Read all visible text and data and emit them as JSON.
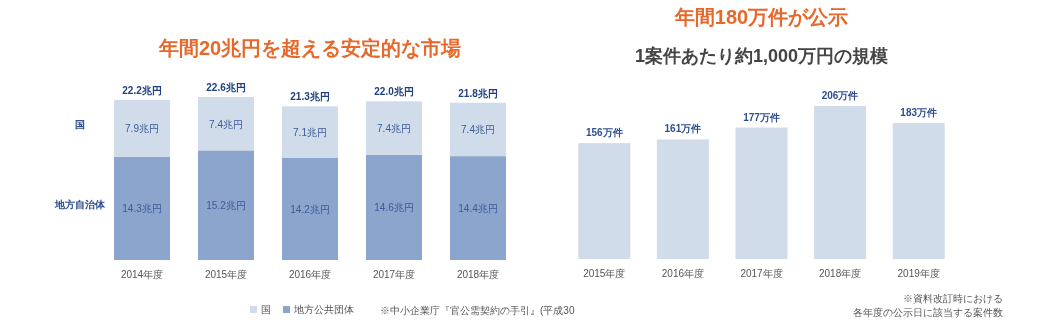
{
  "chart_data": [
    {
      "type": "bar",
      "title": "年間20兆円を超える安定的な市場",
      "stacked": true,
      "categories": [
        "2014年度",
        "2015年度",
        "2016年度",
        "2017年度",
        "2018年度"
      ],
      "series": [
        {
          "name": "地方公共団体",
          "color": "#8ba5cc",
          "values": [
            14.3,
            15.2,
            14.2,
            14.6,
            14.4
          ],
          "value_labels": [
            "14.3兆円",
            "15.2兆円",
            "14.2兆円",
            "14.6兆円",
            "14.4兆円"
          ]
        },
        {
          "name": "国",
          "color": "#d0dcea",
          "values": [
            7.9,
            7.4,
            7.1,
            7.4,
            7.4
          ],
          "value_labels": [
            "7.9兆円",
            "7.4兆円",
            "7.1兆円",
            "7.4兆円",
            "7.4兆円"
          ]
        }
      ],
      "totals": [
        "22.2兆円",
        "22.6兆円",
        "21.3兆円",
        "22.0兆円",
        "21.8兆円"
      ],
      "legend": "bottom",
      "annotations": [
        "国",
        "地方自治体",
        "※中小企業庁『官公需契約の手引』(平成30"
      ]
    },
    {
      "type": "bar",
      "title": "年間180万件が公示",
      "subtitle": "1案件あたり約1,000万円の規模",
      "categories": [
        "2015年度",
        "2016年度",
        "2017年度",
        "2018年度",
        "2019年度"
      ],
      "values": [
        156,
        161,
        177,
        206,
        183
      ],
      "color": "#d0dcea",
      "value_labels": [
        "156万件",
        "161万件",
        "177万件",
        "206万件",
        "183万件"
      ],
      "annotations": [
        "※資料改訂時における",
        "各年度の公示日に該当する案件数"
      ]
    }
  ]
}
